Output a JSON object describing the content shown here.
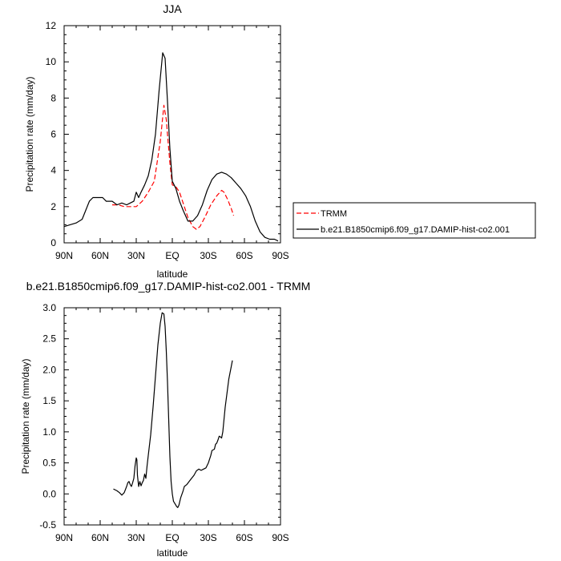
{
  "colors": {
    "trmm": "#ff0000",
    "model": "#000000"
  },
  "chart_data": [
    {
      "type": "line",
      "title": "JJA",
      "xlabel": "latitude",
      "ylabel": "Precipitation rate (mm/day)",
      "xlim": [
        90,
        -90
      ],
      "ylim": [
        0,
        12
      ],
      "xticks": [
        {
          "value": 90,
          "label": "90N"
        },
        {
          "value": 60,
          "label": "60N"
        },
        {
          "value": 30,
          "label": "30N"
        },
        {
          "value": 0,
          "label": "EQ"
        },
        {
          "value": -30,
          "label": "30S"
        },
        {
          "value": -60,
          "label": "60S"
        },
        {
          "value": -90,
          "label": "90S"
        }
      ],
      "yticks": [
        {
          "value": 0,
          "label": "0"
        },
        {
          "value": 2,
          "label": "2"
        },
        {
          "value": 4,
          "label": "4"
        },
        {
          "value": 6,
          "label": "6"
        },
        {
          "value": 8,
          "label": "8"
        },
        {
          "value": 10,
          "label": "10"
        },
        {
          "value": 12,
          "label": "12"
        }
      ],
      "grid": false,
      "legend": "right",
      "series": [
        {
          "name": "TRMM",
          "style": "dashed",
          "color": "#ff0000",
          "points": [
            [
              50,
              2.1
            ],
            [
              45,
              2.1
            ],
            [
              40,
              2.0
            ],
            [
              35,
              2.0
            ],
            [
              30,
              2.0
            ],
            [
              25,
              2.3
            ],
            [
              20,
              2.8
            ],
            [
              15,
              3.4
            ],
            [
              10,
              5.6
            ],
            [
              7,
              7.6
            ],
            [
              5,
              6.8
            ],
            [
              2,
              4.4
            ],
            [
              0,
              3.2
            ],
            [
              -3,
              3.1
            ],
            [
              -6,
              2.8
            ],
            [
              -9,
              2.2
            ],
            [
              -13,
              1.4
            ],
            [
              -17,
              0.9
            ],
            [
              -20,
              0.75
            ],
            [
              -23,
              0.9
            ],
            [
              -27,
              1.4
            ],
            [
              -32,
              2.1
            ],
            [
              -37,
              2.6
            ],
            [
              -41,
              2.9
            ],
            [
              -43,
              2.8
            ],
            [
              -46,
              2.4
            ],
            [
              -49,
              1.9
            ],
            [
              -51,
              1.5
            ]
          ]
        },
        {
          "name": "b.e21.B1850cmip6.f09_g17.DAMIP-hist-co2.001",
          "style": "solid",
          "color": "#000000",
          "points": [
            [
              90,
              0.9
            ],
            [
              85,
              1.0
            ],
            [
              80,
              1.1
            ],
            [
              75,
              1.3
            ],
            [
              72,
              1.8
            ],
            [
              69,
              2.3
            ],
            [
              66,
              2.5
            ],
            [
              62,
              2.5
            ],
            [
              58,
              2.5
            ],
            [
              55,
              2.3
            ],
            [
              50,
              2.3
            ],
            [
              46,
              2.1
            ],
            [
              42,
              2.2
            ],
            [
              38,
              2.1
            ],
            [
              35,
              2.2
            ],
            [
              32,
              2.3
            ],
            [
              30,
              2.8
            ],
            [
              28,
              2.5
            ],
            [
              26,
              2.8
            ],
            [
              23,
              3.2
            ],
            [
              20,
              3.7
            ],
            [
              17,
              4.6
            ],
            [
              14,
              6.0
            ],
            [
              11,
              8.4
            ],
            [
              8,
              10.5
            ],
            [
              6,
              10.2
            ],
            [
              4,
              7.8
            ],
            [
              2,
              5.2
            ],
            [
              0,
              3.4
            ],
            [
              -3,
              3.0
            ],
            [
              -6,
              2.3
            ],
            [
              -9,
              1.8
            ],
            [
              -13,
              1.2
            ],
            [
              -17,
              1.2
            ],
            [
              -21,
              1.5
            ],
            [
              -25,
              2.1
            ],
            [
              -29,
              2.9
            ],
            [
              -33,
              3.5
            ],
            [
              -37,
              3.8
            ],
            [
              -41,
              3.9
            ],
            [
              -45,
              3.8
            ],
            [
              -49,
              3.6
            ],
            [
              -53,
              3.3
            ],
            [
              -57,
              3.0
            ],
            [
              -61,
              2.6
            ],
            [
              -65,
              2.0
            ],
            [
              -69,
              1.2
            ],
            [
              -73,
              0.6
            ],
            [
              -77,
              0.3
            ],
            [
              -81,
              0.2
            ],
            [
              -85,
              0.2
            ],
            [
              -88,
              0.1
            ]
          ]
        }
      ]
    },
    {
      "type": "line",
      "title": "b.e21.B1850cmip6.f09_g17.DAMIP-hist-co2.001 - TRMM",
      "xlabel": "latitude",
      "ylabel": "Precipitation rate (mm/day)",
      "xlim": [
        90,
        -90
      ],
      "ylim": [
        -0.5,
        3.0
      ],
      "xticks": [
        {
          "value": 90,
          "label": "90N"
        },
        {
          "value": 60,
          "label": "60N"
        },
        {
          "value": 30,
          "label": "30N"
        },
        {
          "value": 0,
          "label": "EQ"
        },
        {
          "value": -30,
          "label": "30S"
        },
        {
          "value": -60,
          "label": "60S"
        },
        {
          "value": -90,
          "label": "90S"
        }
      ],
      "yticks": [
        {
          "value": -0.5,
          "label": "-0.5"
        },
        {
          "value": 0,
          "label": "0.0"
        },
        {
          "value": 0.5,
          "label": "0.5"
        },
        {
          "value": 1.0,
          "label": "1.0"
        },
        {
          "value": 1.5,
          "label": "1.5"
        },
        {
          "value": 2.0,
          "label": "2.0"
        },
        {
          "value": 2.5,
          "label": "2.5"
        },
        {
          "value": 3.0,
          "label": "3.0"
        }
      ],
      "grid": false,
      "series": [
        {
          "style": "solid",
          "color": "#000000",
          "points": [
            [
              49,
              0.08
            ],
            [
              46,
              0.05
            ],
            [
              44,
              0.02
            ],
            [
              42,
              -0.02
            ],
            [
              40,
              0.02
            ],
            [
              38,
              0.12
            ],
            [
              37,
              0.18
            ],
            [
              36,
              0.2
            ],
            [
              35,
              0.15
            ],
            [
              34,
              0.12
            ],
            [
              33,
              0.18
            ],
            [
              32,
              0.25
            ],
            [
              31,
              0.45
            ],
            [
              30,
              0.58
            ],
            [
              29.5,
              0.55
            ],
            [
              29,
              0.3
            ],
            [
              28,
              0.12
            ],
            [
              27,
              0.2
            ],
            [
              26,
              0.13
            ],
            [
              25,
              0.18
            ],
            [
              24,
              0.22
            ],
            [
              23,
              0.32
            ],
            [
              22,
              0.25
            ],
            [
              21,
              0.45
            ],
            [
              20,
              0.62
            ],
            [
              18,
              0.95
            ],
            [
              16,
              1.4
            ],
            [
              14,
              1.9
            ],
            [
              12,
              2.4
            ],
            [
              10,
              2.75
            ],
            [
              8.5,
              2.92
            ],
            [
              7,
              2.9
            ],
            [
              6,
              2.7
            ],
            [
              5,
              2.3
            ],
            [
              4,
              1.8
            ],
            [
              3,
              1.2
            ],
            [
              2,
              0.6
            ],
            [
              1,
              0.2
            ],
            [
              0,
              0.0
            ],
            [
              -1,
              -0.12
            ],
            [
              -2,
              -0.15
            ],
            [
              -3.5,
              -0.2
            ],
            [
              -4.5,
              -0.22
            ],
            [
              -5.5,
              -0.18
            ],
            [
              -7,
              -0.06
            ],
            [
              -9,
              0.05
            ],
            [
              -10,
              0.12
            ],
            [
              -12,
              0.15
            ],
            [
              -14,
              0.2
            ],
            [
              -16,
              0.25
            ],
            [
              -18,
              0.3
            ],
            [
              -20,
              0.37
            ],
            [
              -22,
              0.4
            ],
            [
              -24,
              0.38
            ],
            [
              -26,
              0.4
            ],
            [
              -28,
              0.42
            ],
            [
              -30,
              0.5
            ],
            [
              -31,
              0.56
            ],
            [
              -32,
              0.62
            ],
            [
              -33,
              0.7
            ],
            [
              -35,
              0.72
            ],
            [
              -36,
              0.8
            ],
            [
              -37,
              0.82
            ],
            [
              -38,
              0.87
            ],
            [
              -39,
              0.93
            ],
            [
              -40,
              0.92
            ],
            [
              -41,
              0.9
            ],
            [
              -42,
              1.0
            ],
            [
              -43,
              1.2
            ],
            [
              -44,
              1.4
            ],
            [
              -45,
              1.55
            ],
            [
              -46,
              1.7
            ],
            [
              -47,
              1.85
            ],
            [
              -48,
              1.95
            ],
            [
              -49,
              2.05
            ],
            [
              -50,
              2.15
            ]
          ]
        }
      ]
    }
  ]
}
